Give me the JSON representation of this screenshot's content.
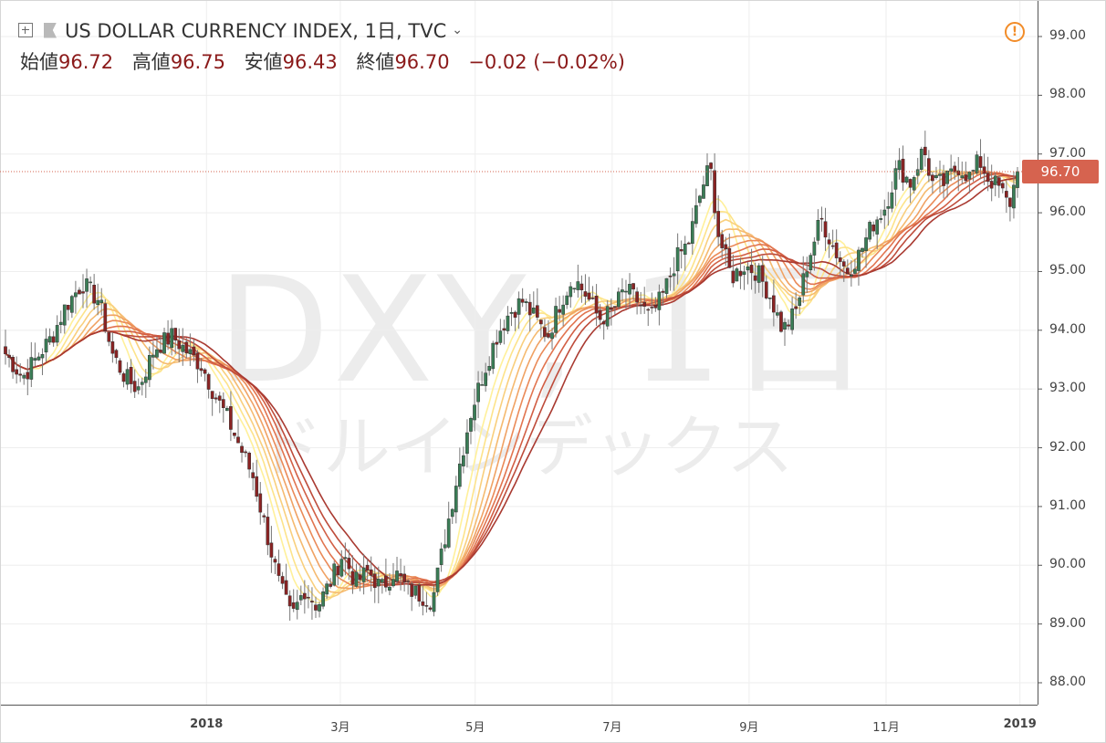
{
  "header": {
    "title": "US DOLLAR CURRENCY INDEX, 1日, TVC",
    "open_label": "始値",
    "open_value": "96.72",
    "high_label": "高値",
    "high_value": "96.75",
    "low_label": "安値",
    "low_value": "96.43",
    "close_label": "終値",
    "close_value": "96.70",
    "change": "−0.02 (−0.02%)"
  },
  "watermark": {
    "symbol": "DXY, 1日",
    "name": "ドルインデックス"
  },
  "last_price_label": "96.70",
  "warning_glyph": "!",
  "icons": [
    "add-icon",
    "flag-icon",
    "chevron-down-icon",
    "warning-icon"
  ],
  "colors": {
    "up_candle": "#3a7d56",
    "down_candle": "#8b2323",
    "last_price": "#d6634f",
    "ma_ribbon": [
      "#fff09a",
      "#fde38a",
      "#f9cf7d",
      "#f5ba70",
      "#f0a264",
      "#ea8a58",
      "#e1744f",
      "#d25f45",
      "#be4c3b",
      "#a93a31"
    ]
  },
  "chart_data": {
    "type": "candlestick",
    "title": "US DOLLAR CURRENCY INDEX, 1日, TVC",
    "ylim": [
      87.6,
      100.0
    ],
    "y_ticks": [
      "99.00",
      "98.00",
      "97.00",
      "96.00",
      "95.00",
      "94.00",
      "93.00",
      "92.00",
      "91.00",
      "90.00",
      "89.00",
      "88.00"
    ],
    "x_ticks": [
      {
        "label": "2018",
        "pos": 0.199,
        "bold": true
      },
      {
        "label": "3月",
        "pos": 0.328
      },
      {
        "label": "5月",
        "pos": 0.458
      },
      {
        "label": "7月",
        "pos": 0.59
      },
      {
        "label": "9月",
        "pos": 0.722
      },
      {
        "label": "11月",
        "pos": 0.854
      },
      {
        "label": "2019",
        "pos": 0.983,
        "bold": true
      }
    ],
    "grid": true,
    "last_close": 96.7,
    "candles": 275,
    "close_anchors": [
      [
        0,
        93.6
      ],
      [
        8,
        93.2
      ],
      [
        14,
        93.5
      ],
      [
        22,
        93.9
      ],
      [
        28,
        94.4
      ],
      [
        36,
        94.8
      ],
      [
        44,
        94.5
      ],
      [
        50,
        93.6
      ],
      [
        56,
        93.2
      ],
      [
        62,
        93.0
      ],
      [
        70,
        93.7
      ],
      [
        78,
        93.9
      ],
      [
        86,
        93.6
      ],
      [
        92,
        93.4
      ],
      [
        98,
        92.9
      ],
      [
        104,
        92.5
      ],
      [
        110,
        92.0
      ],
      [
        116,
        91.5
      ],
      [
        122,
        90.6
      ],
      [
        128,
        89.7
      ],
      [
        134,
        89.1
      ],
      [
        140,
        89.6
      ],
      [
        146,
        89.3
      ],
      [
        152,
        89.7
      ],
      [
        158,
        90.2
      ],
      [
        164,
        89.7
      ],
      [
        170,
        89.9
      ],
      [
        176,
        89.6
      ],
      [
        182,
        89.9
      ],
      [
        188,
        89.6
      ],
      [
        194,
        89.5
      ],
      [
        200,
        89.4
      ],
      [
        206,
        90.5
      ],
      [
        212,
        91.6
      ],
      [
        218,
        92.6
      ],
      [
        224,
        93.3
      ],
      [
        230,
        93.9
      ],
      [
        236,
        94.3
      ],
      [
        242,
        94.5
      ],
      [
        248,
        94.2
      ],
      [
        254,
        93.9
      ],
      [
        260,
        94.5
      ],
      [
        266,
        94.9
      ],
      [
        272,
        94.6
      ],
      [
        278,
        94.2
      ],
      [
        284,
        94.3
      ],
      [
        290,
        94.7
      ],
      [
        296,
        94.5
      ],
      [
        302,
        94.2
      ],
      [
        308,
        94.6
      ],
      [
        314,
        95.2
      ],
      [
        320,
        95.5
      ],
      [
        326,
        96.4
      ],
      [
        330,
        96.8
      ],
      [
        334,
        95.6
      ],
      [
        340,
        94.9
      ],
      [
        346,
        95.1
      ],
      [
        352,
        95.0
      ],
      [
        358,
        94.6
      ],
      [
        364,
        94.0
      ],
      [
        370,
        94.3
      ],
      [
        376,
        95.2
      ],
      [
        382,
        95.9
      ],
      [
        388,
        95.4
      ],
      [
        394,
        95.0
      ],
      [
        400,
        95.3
      ],
      [
        406,
        95.8
      ],
      [
        412,
        96.1
      ],
      [
        418,
        96.8
      ],
      [
        424,
        96.5
      ],
      [
        430,
        97.1
      ],
      [
        434,
        96.5
      ],
      [
        440,
        96.5
      ],
      [
        446,
        96.8
      ],
      [
        452,
        96.6
      ],
      [
        456,
        96.9
      ],
      [
        460,
        96.6
      ],
      [
        466,
        96.4
      ],
      [
        470,
        96.1
      ],
      [
        474,
        96.7
      ]
    ]
  }
}
